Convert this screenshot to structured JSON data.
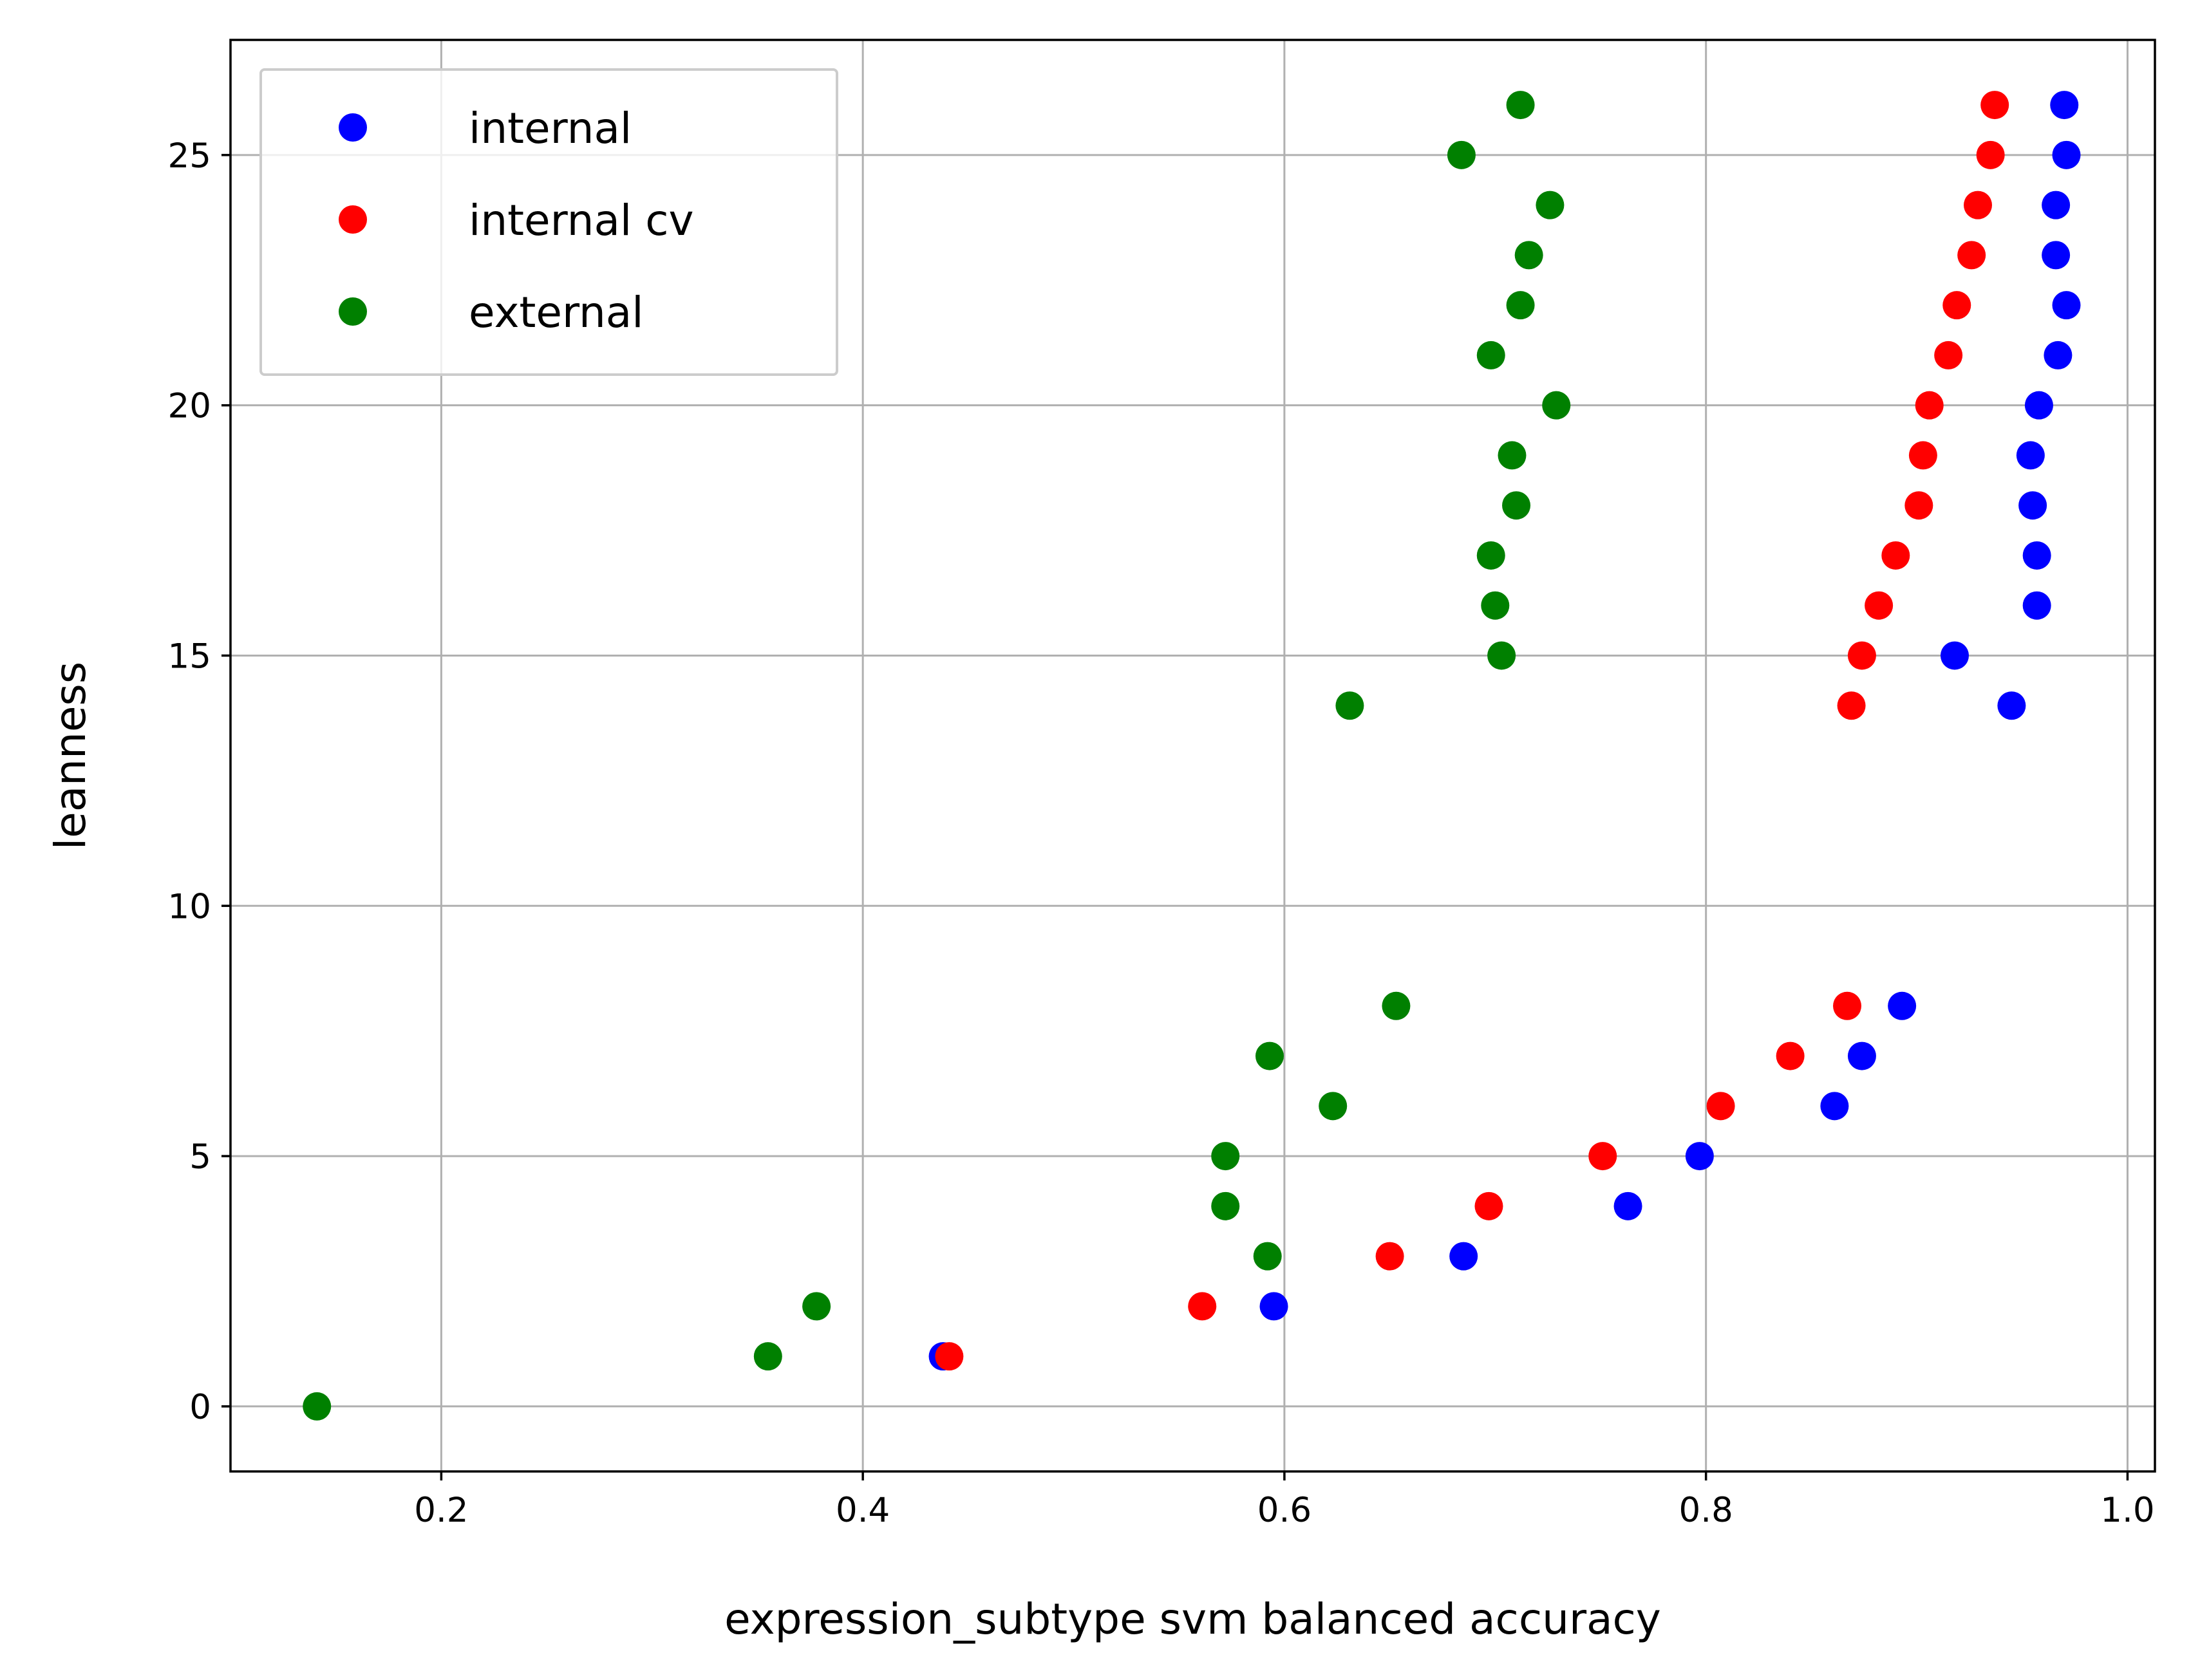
{
  "chart_data": {
    "type": "scatter",
    "title": "",
    "xlabel": "expression_subtype svm balanced accuracy",
    "ylabel": "leanness",
    "xlim": [
      0.1,
      1.013
    ],
    "ylim": [
      -1.3,
      27.3
    ],
    "xticks": [
      0.2,
      0.4,
      0.6,
      0.8,
      1.0
    ],
    "xtick_labels": [
      "0.2",
      "0.4",
      "0.6",
      "0.8",
      "1.0"
    ],
    "yticks": [
      0,
      5,
      10,
      15,
      20,
      25
    ],
    "ytick_labels": [
      "0",
      "5",
      "10",
      "15",
      "20",
      "25"
    ],
    "grid": true,
    "legend_position": "top-left",
    "series": [
      {
        "name": "internal",
        "color": "#0000ff",
        "points": [
          [
            0.438,
            1
          ],
          [
            0.595,
            2
          ],
          [
            0.685,
            3
          ],
          [
            0.763,
            4
          ],
          [
            0.797,
            5
          ],
          [
            0.861,
            6
          ],
          [
            0.874,
            7
          ],
          [
            0.893,
            8
          ],
          [
            0.918,
            15
          ],
          [
            0.945,
            14
          ],
          [
            0.957,
            16
          ],
          [
            0.957,
            17
          ],
          [
            0.955,
            18
          ],
          [
            0.954,
            19
          ],
          [
            0.958,
            20
          ],
          [
            0.967,
            21
          ],
          [
            0.971,
            22
          ],
          [
            0.966,
            23
          ],
          [
            0.966,
            24
          ],
          [
            0.971,
            25
          ],
          [
            0.97,
            26
          ]
        ]
      },
      {
        "name": "internal cv",
        "color": "#ff0000",
        "points": [
          [
            0.441,
            1
          ],
          [
            0.561,
            2
          ],
          [
            0.65,
            3
          ],
          [
            0.697,
            4
          ],
          [
            0.751,
            5
          ],
          [
            0.807,
            6
          ],
          [
            0.84,
            7
          ],
          [
            0.867,
            8
          ],
          [
            0.869,
            14
          ],
          [
            0.874,
            15
          ],
          [
            0.882,
            16
          ],
          [
            0.89,
            17
          ],
          [
            0.901,
            18
          ],
          [
            0.903,
            19
          ],
          [
            0.906,
            20
          ],
          [
            0.915,
            21
          ],
          [
            0.919,
            22
          ],
          [
            0.926,
            23
          ],
          [
            0.929,
            24
          ],
          [
            0.935,
            25
          ],
          [
            0.937,
            26
          ]
        ]
      },
      {
        "name": "external",
        "color": "#008000",
        "points": [
          [
            0.141,
            0
          ],
          [
            0.355,
            1
          ],
          [
            0.378,
            2
          ],
          [
            0.592,
            3
          ],
          [
            0.572,
            4
          ],
          [
            0.572,
            5
          ],
          [
            0.623,
            6
          ],
          [
            0.593,
            7
          ],
          [
            0.653,
            8
          ],
          [
            0.631,
            14
          ],
          [
            0.703,
            15
          ],
          [
            0.7,
            16
          ],
          [
            0.698,
            17
          ],
          [
            0.71,
            18
          ],
          [
            0.708,
            19
          ],
          [
            0.729,
            20
          ],
          [
            0.698,
            21
          ],
          [
            0.712,
            22
          ],
          [
            0.716,
            23
          ],
          [
            0.726,
            24
          ],
          [
            0.684,
            25
          ],
          [
            0.712,
            26
          ]
        ]
      }
    ]
  }
}
